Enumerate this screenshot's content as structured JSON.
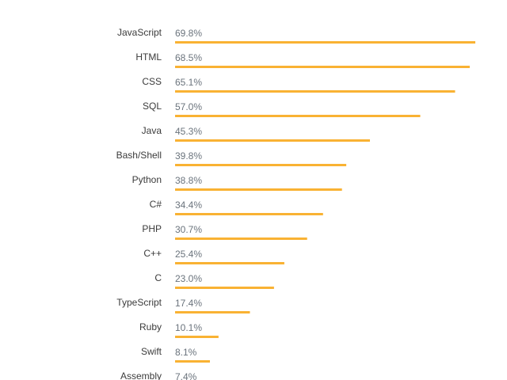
{
  "chart_data": {
    "type": "bar",
    "orientation": "horizontal",
    "color": "#f9b233",
    "categories": [
      "JavaScript",
      "HTML",
      "CSS",
      "SQL",
      "Java",
      "Bash/Shell",
      "Python",
      "C#",
      "PHP",
      "C++",
      "C",
      "TypeScript",
      "Ruby",
      "Swift",
      "Assembly"
    ],
    "values": [
      69.8,
      68.5,
      65.1,
      57.0,
      45.3,
      39.8,
      38.8,
      34.4,
      30.7,
      25.4,
      23.0,
      17.4,
      10.1,
      8.1,
      7.4
    ],
    "value_labels": [
      "69.8%",
      "68.5%",
      "65.1%",
      "57.0%",
      "45.3%",
      "39.8%",
      "38.8%",
      "34.4%",
      "30.7%",
      "25.4%",
      "23.0%",
      "17.4%",
      "10.1%",
      "8.1%",
      "7.4%"
    ]
  }
}
